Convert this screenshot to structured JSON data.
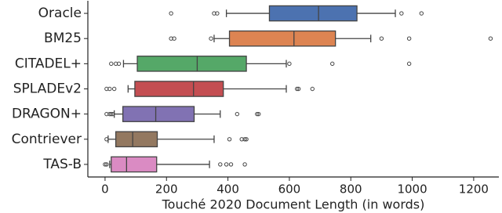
{
  "chart_data": {
    "type": "boxplot",
    "orientation": "horizontal",
    "x_label": "Touché 2020 Document Length (in words)",
    "xlim": [
      -56,
      1282
    ],
    "xticks": [
      0,
      200,
      400,
      600,
      800,
      1000,
      1200
    ],
    "categories": [
      "Oracle",
      "BM25",
      "CITADEL+",
      "SPLADEv2",
      "DRAGON+",
      "Contriever",
      "TAS-B"
    ],
    "colors": [
      "#4c72b0",
      "#dd8452",
      "#55a868",
      "#c44e52",
      "#8172b3",
      "#937860",
      "#da8bc3"
    ],
    "boxes": [
      {
        "min": 395,
        "q1": 535,
        "median": 695,
        "q3": 820,
        "max": 945,
        "outliers": [
          215,
          355,
          365,
          965,
          1030
        ]
      },
      {
        "min": 355,
        "q1": 405,
        "median": 615,
        "q3": 750,
        "max": 865,
        "outliers": [
          215,
          225,
          345,
          900,
          990,
          1255
        ]
      },
      {
        "min": 60,
        "q1": 105,
        "median": 300,
        "q3": 460,
        "max": 590,
        "outliers": [
          20,
          35,
          45,
          600,
          740,
          990
        ]
      },
      {
        "min": 75,
        "q1": 97,
        "median": 288,
        "q3": 385,
        "max": 590,
        "outliers": [
          5,
          15,
          30,
          625,
          630,
          675
        ]
      },
      {
        "min": 30,
        "q1": 58,
        "median": 165,
        "q3": 290,
        "max": 375,
        "outliers": [
          5,
          15,
          20,
          25,
          430,
          495,
          500
        ]
      },
      {
        "min": 10,
        "q1": 35,
        "median": 90,
        "q3": 170,
        "max": 355,
        "outliers": [
          5,
          405,
          445,
          455,
          460
        ]
      },
      {
        "min": 15,
        "q1": 20,
        "median": 70,
        "q3": 168,
        "max": 340,
        "outliers": [
          0,
          5,
          375,
          395,
          410,
          455
        ]
      }
    ]
  }
}
